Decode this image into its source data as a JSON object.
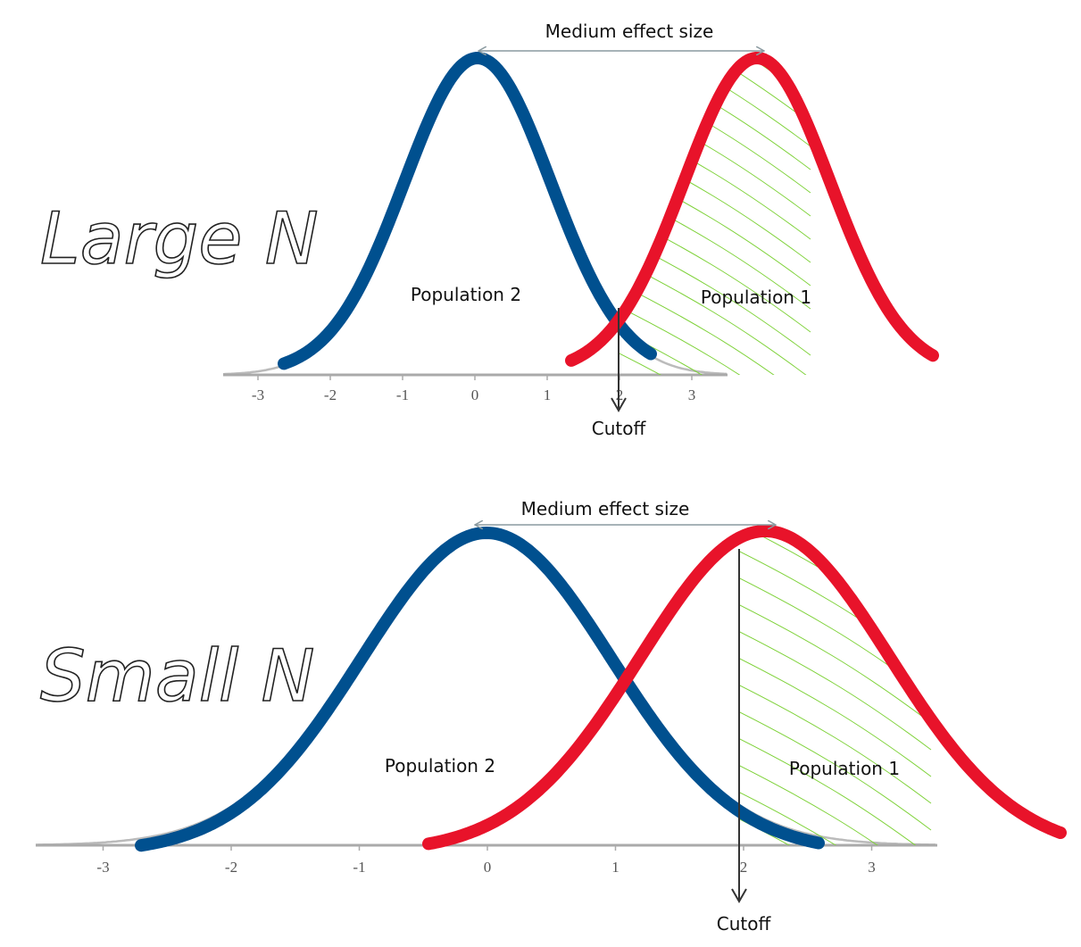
{
  "panels": [
    {
      "side_label": "Large N",
      "effect_label": "Medium effect size",
      "population_2_label": "Population 2",
      "population_1_label": "Population 1",
      "cutoff_label": "Cutoff",
      "ticks": [
        "-3",
        "-2",
        "-1",
        "0",
        "1",
        "2",
        "3"
      ],
      "cutoff_value": 2
    },
    {
      "side_label": "Small N",
      "effect_label": "Medium effect size",
      "population_2_label": "Population 2",
      "population_1_label": "Population 1",
      "cutoff_label": "Cutoff",
      "ticks": [
        "-3",
        "-2",
        "-1",
        "0",
        "1",
        "2",
        "3"
      ],
      "cutoff_value": 2
    }
  ],
  "colors": {
    "population_2": "#00508f",
    "population_1": "#e8132a",
    "hatch": "#7fd23a",
    "axis": "#aaaaaa",
    "arrow": "#8a9aa0"
  }
}
